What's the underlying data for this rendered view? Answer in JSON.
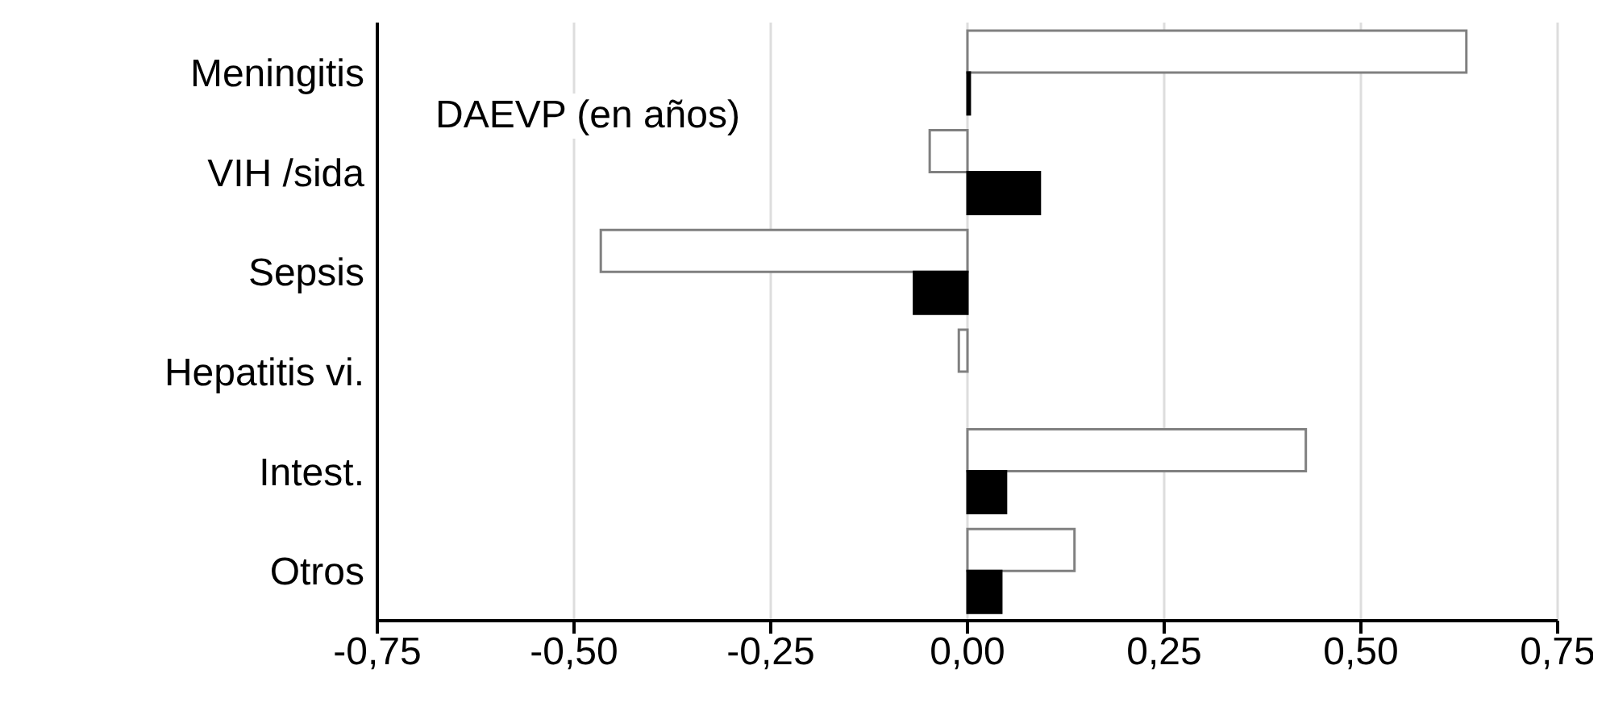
{
  "chart_data": {
    "type": "bar",
    "orientation": "horizontal",
    "categories": [
      "Meningitis",
      "VIH /sida",
      "Sepsis",
      "Hepatitis vi.",
      "Intest.",
      "Otros"
    ],
    "series": [
      {
        "color": "#ffffff",
        "values": [
          0.634,
          -0.048,
          -0.466,
          -0.011,
          0.43,
          0.136
        ]
      },
      {
        "color": "#000000",
        "values": [
          0.003,
          0.092,
          -0.068,
          null,
          0.049,
          0.043
        ]
      }
    ],
    "xlim": [
      -0.75,
      0.75
    ],
    "xticks": [
      {
        "value": -0.75,
        "label": "-0,75"
      },
      {
        "value": -0.5,
        "label": "-0,50"
      },
      {
        "value": -0.25,
        "label": "-0,25"
      },
      {
        "value": 0,
        "label": "0,00"
      },
      {
        "value": 0.25,
        "label": "0,25"
      },
      {
        "value": 0.5,
        "label": "0,50"
      },
      {
        "value": 0.75,
        "label": "0,75"
      }
    ],
    "grid": "x",
    "annotations": [
      "DAEVP (en años)"
    ]
  }
}
